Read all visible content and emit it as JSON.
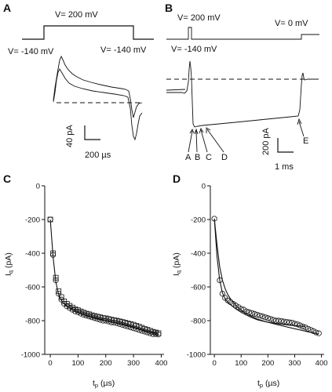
{
  "panel_A": {
    "letter": "A",
    "v_high_label": "V= 200 mV",
    "v_left_label": "V= -140 mV",
    "v_right_label": "V= -140 mV",
    "scale_y_label": "40 pA",
    "scale_x_label": "200 µs"
  },
  "panel_B": {
    "letter": "B",
    "v_high_label": "V= 200 mV",
    "v_left_label": "V= -140 mV",
    "v_zero_label": "V= 0 mV",
    "scale_y_label": "200 pA",
    "scale_x_label": "1 ms",
    "points": [
      "A",
      "B",
      "C",
      "D",
      "E"
    ]
  },
  "chart_data": [
    {
      "type": "scatter",
      "panel": "C",
      "xlabel": "tp (µs)",
      "ylabel": "Iq (pA)",
      "xlim": [
        -20,
        410
      ],
      "ylim": [
        -1000,
        0
      ],
      "xticks": [
        0,
        100,
        200,
        300,
        400
      ],
      "yticks": [
        0,
        -200,
        -400,
        -600,
        -800,
        -1000
      ],
      "grid": false,
      "series": [
        {
          "marker": "circle",
          "x": [
            0,
            10,
            20,
            30,
            40,
            50,
            60,
            70,
            80,
            90,
            100,
            110,
            120,
            130,
            140,
            150,
            160,
            170,
            180,
            190,
            200,
            210,
            220,
            230,
            240,
            250,
            260,
            270,
            280,
            290,
            300,
            310,
            320,
            330,
            340,
            350,
            360,
            370,
            380,
            390
          ],
          "y": [
            -200,
            -410,
            -560,
            -640,
            -675,
            -700,
            -715,
            -725,
            -735,
            -745,
            -750,
            -758,
            -765,
            -770,
            -775,
            -780,
            -785,
            -790,
            -795,
            -800,
            -800,
            -805,
            -810,
            -812,
            -815,
            -820,
            -825,
            -830,
            -835,
            -840,
            -845,
            -850,
            -855,
            -860,
            -865,
            -870,
            -875,
            -880,
            -880,
            -882
          ]
        },
        {
          "marker": "square",
          "x": [
            0,
            10,
            20,
            30,
            40,
            50,
            60,
            70,
            80,
            90,
            100,
            110,
            120,
            130,
            140,
            150,
            160,
            170,
            180,
            190,
            200,
            210,
            220,
            230,
            240,
            250,
            260,
            270,
            280,
            290,
            300,
            310,
            320,
            330,
            340,
            350,
            360,
            370,
            380,
            390
          ],
          "y": [
            -200,
            -400,
            -545,
            -625,
            -660,
            -685,
            -700,
            -712,
            -722,
            -732,
            -738,
            -745,
            -752,
            -758,
            -762,
            -768,
            -772,
            -776,
            -780,
            -784,
            -786,
            -790,
            -794,
            -797,
            -800,
            -804,
            -808,
            -812,
            -816,
            -820,
            -824,
            -830,
            -836,
            -842,
            -848,
            -854,
            -860,
            -866,
            -870,
            -874
          ]
        },
        {
          "marker": "line",
          "x": [
            0,
            10,
            20,
            30,
            40,
            50,
            60,
            80,
            100,
            130,
            160,
            200,
            250,
            300,
            350,
            390
          ],
          "y": [
            -200,
            -420,
            -570,
            -645,
            -680,
            -700,
            -715,
            -735,
            -750,
            -768,
            -782,
            -800,
            -820,
            -842,
            -865,
            -880
          ]
        }
      ]
    },
    {
      "type": "scatter",
      "panel": "D",
      "xlabel": "tp (µs)",
      "ylabel": "Iq (pA)",
      "xlim": [
        -15,
        410
      ],
      "ylim": [
        -1000,
        0
      ],
      "xticks": [
        0,
        100,
        200,
        300,
        400
      ],
      "yticks": [
        0,
        -200,
        -400,
        -600,
        -800,
        -1000
      ],
      "grid": false,
      "series": [
        {
          "marker": "circle",
          "x": [
            0,
            20,
            30,
            40,
            50,
            60,
            70,
            80,
            90,
            100,
            110,
            120,
            130,
            140,
            150,
            160,
            170,
            180,
            190,
            200,
            210,
            220,
            230,
            240,
            250,
            260,
            270,
            280,
            290,
            300,
            310,
            320,
            330,
            340,
            350,
            360,
            370,
            380,
            390
          ],
          "y": [
            -195,
            -560,
            -640,
            -665,
            -680,
            -690,
            -700,
            -710,
            -720,
            -730,
            -735,
            -745,
            -750,
            -755,
            -760,
            -765,
            -770,
            -775,
            -780,
            -785,
            -790,
            -795,
            -800,
            -800,
            -802,
            -805,
            -808,
            -810,
            -812,
            -818,
            -822,
            -828,
            -835,
            -840,
            -848,
            -855,
            -862,
            -870,
            -875
          ]
        },
        {
          "marker": "line",
          "x": [
            0,
            10,
            20,
            30,
            40,
            50,
            60,
            80,
            100,
            130,
            160,
            200,
            250,
            300,
            340
          ],
          "y": [
            -195,
            -420,
            -560,
            -635,
            -670,
            -690,
            -705,
            -730,
            -750,
            -775,
            -795,
            -810,
            -822,
            -830,
            -835
          ]
        },
        {
          "marker": "line",
          "x": [
            0,
            10,
            20,
            30,
            40,
            50,
            60,
            80,
            100,
            130,
            160,
            200,
            250,
            300,
            350,
            390
          ],
          "y": [
            -195,
            -350,
            -480,
            -560,
            -610,
            -645,
            -670,
            -710,
            -738,
            -768,
            -790,
            -810,
            -830,
            -848,
            -866,
            -880
          ]
        }
      ]
    }
  ]
}
